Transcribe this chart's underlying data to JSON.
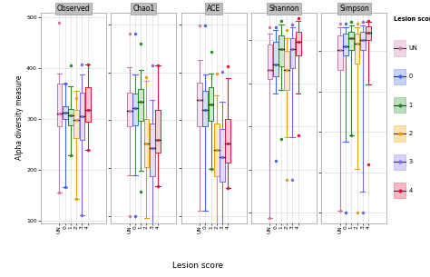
{
  "panels": [
    "Observed",
    "Chao1",
    "ACE",
    "Shannon",
    "Simpson"
  ],
  "groups": [
    "UN",
    "0",
    "1",
    "2",
    "3",
    "4"
  ],
  "colors": {
    "UN": "#CC79A7",
    "0": "#4169E1",
    "1": "#228B22",
    "2": "#E69F00",
    "3": "#7B68EE",
    "4": "#DC143C"
  },
  "observed": {
    "UN": {
      "whislo": 155,
      "q1": 285,
      "med": 310,
      "q3": 370,
      "whishi": 390,
      "fliers_low": [
        155
      ],
      "fliers_high": [
        490
      ]
    },
    "0": {
      "whislo": 165,
      "q1": 300,
      "med": 312,
      "q3": 325,
      "whishi": 370,
      "fliers_low": [
        165
      ],
      "fliers_high": [
        370
      ]
    },
    "1": {
      "whislo": 228,
      "q1": 288,
      "med": 308,
      "q3": 320,
      "whishi": 365,
      "fliers_low": [
        228
      ],
      "fliers_high": [
        405
      ]
    },
    "2": {
      "whislo": 142,
      "q1": 262,
      "med": 298,
      "q3": 318,
      "whishi": 355,
      "fliers_low": [
        142
      ],
      "fliers_high": [
        342
      ]
    },
    "3": {
      "whislo": 110,
      "q1": 258,
      "med": 305,
      "q3": 352,
      "whishi": 388,
      "fliers_low": [
        110
      ],
      "fliers_high": [
        408
      ]
    },
    "4": {
      "whislo": 240,
      "q1": 295,
      "med": 318,
      "q3": 362,
      "whishi": 408,
      "fliers_low": [
        240
      ],
      "fliers_high": [
        408
      ]
    }
  },
  "chao1": {
    "UN": {
      "whislo": 285,
      "q1": 388,
      "med": 420,
      "q3": 458,
      "whishi": 510,
      "fliers_low": [
        200
      ],
      "fliers_high": [
        580
      ]
    },
    "0": {
      "whislo": 285,
      "q1": 390,
      "med": 425,
      "q3": 455,
      "whishi": 495,
      "fliers_low": [
        200
      ],
      "fliers_high": [
        580
      ]
    },
    "1": {
      "whislo": 295,
      "q1": 398,
      "med": 438,
      "q3": 465,
      "whishi": 505,
      "fliers_low": [
        250
      ],
      "fliers_high": [
        560
      ]
    },
    "2": {
      "whislo": 195,
      "q1": 302,
      "med": 352,
      "q3": 402,
      "whishi": 482,
      "fliers_low": [
        130
      ],
      "fliers_high": [
        490
      ]
    },
    "3": {
      "whislo": 130,
      "q1": 282,
      "med": 342,
      "q3": 392,
      "whishi": 442,
      "fliers_low": [
        130
      ],
      "fliers_high": [
        515
      ]
    },
    "4": {
      "whislo": 262,
      "q1": 332,
      "med": 358,
      "q3": 422,
      "whishi": 515,
      "fliers_low": [
        262
      ],
      "fliers_high": [
        515
      ]
    }
  },
  "ace": {
    "UN": {
      "whislo": 210,
      "q1": 388,
      "med": 442,
      "q3": 478,
      "whishi": 525,
      "fliers_low": [
        120
      ],
      "fliers_high": [
        598
      ]
    },
    "0": {
      "whislo": 210,
      "q1": 388,
      "med": 422,
      "q3": 462,
      "whishi": 495,
      "fliers_low": [
        120
      ],
      "fliers_high": [
        598
      ]
    },
    "1": {
      "whislo": 298,
      "q1": 398,
      "med": 432,
      "q3": 468,
      "whishi": 498,
      "fliers_low": [
        298
      ],
      "fliers_high": [
        542
      ]
    },
    "2": {
      "whislo": 162,
      "q1": 282,
      "med": 338,
      "q3": 392,
      "whishi": 452,
      "fliers_low": [
        162
      ],
      "fliers_high": [
        498
      ]
    },
    "3": {
      "whislo": 120,
      "q1": 272,
      "med": 322,
      "q3": 382,
      "whishi": 438,
      "fliers_low": [
        120
      ],
      "fliers_high": [
        502
      ]
    },
    "4": {
      "whislo": 258,
      "q1": 312,
      "med": 352,
      "q3": 402,
      "whishi": 488,
      "fliers_low": [
        258
      ],
      "fliers_high": [
        512
      ]
    }
  },
  "shannon": {
    "UN": {
      "whislo": 1.44,
      "q1": 3.05,
      "med": 3.15,
      "q3": 3.45,
      "whishi": 3.58,
      "fliers_low": [
        1.44
      ],
      "fliers_high": [
        3.65
      ]
    },
    "0": {
      "whislo": 2.88,
      "q1": 3.08,
      "med": 3.22,
      "q3": 3.48,
      "whishi": 3.62,
      "fliers_low": [
        2.1
      ],
      "fliers_high": [
        3.65
      ]
    },
    "1": {
      "whislo": 2.92,
      "q1": 3.2,
      "med": 3.4,
      "q3": 3.55,
      "whishi": 3.68,
      "fliers_low": [
        2.35
      ],
      "fliers_high": [
        3.72
      ]
    },
    "2": {
      "whislo": 2.38,
      "q1": 2.92,
      "med": 3.15,
      "q3": 3.38,
      "whishi": 3.52,
      "fliers_low": [
        1.88
      ],
      "fliers_high": [
        3.62
      ]
    },
    "3": {
      "whislo": 2.38,
      "q1": 3.18,
      "med": 3.4,
      "q3": 3.52,
      "whishi": 3.65,
      "fliers_low": [
        1.88
      ],
      "fliers_high": [
        3.68
      ]
    },
    "4": {
      "whislo": 2.88,
      "q1": 3.32,
      "med": 3.48,
      "q3": 3.6,
      "whishi": 3.72,
      "fliers_low": [
        2.4
      ],
      "fliers_high": [
        3.75
      ]
    }
  },
  "simpson": {
    "UN": {
      "whislo": 0.505,
      "q1": 0.852,
      "med": 0.902,
      "q3": 0.938,
      "whishi": 0.958,
      "fliers_low": [
        0.505
      ],
      "fliers_high": [
        0.968
      ]
    },
    "0": {
      "whislo": 0.675,
      "q1": 0.888,
      "med": 0.912,
      "q3": 0.942,
      "whishi": 0.958,
      "fliers_low": [
        0.5
      ],
      "fliers_high": [
        0.968
      ]
    },
    "1": {
      "whislo": 0.692,
      "q1": 0.902,
      "med": 0.932,
      "q3": 0.948,
      "whishi": 0.962,
      "fliers_low": [
        0.692
      ],
      "fliers_high": [
        0.972
      ]
    },
    "2": {
      "whislo": 0.608,
      "q1": 0.868,
      "med": 0.918,
      "q3": 0.942,
      "whishi": 0.958,
      "fliers_low": [
        0.5
      ],
      "fliers_high": [
        0.968
      ]
    },
    "3": {
      "whislo": 0.552,
      "q1": 0.902,
      "med": 0.928,
      "q3": 0.948,
      "whishi": 0.962,
      "fliers_low": [
        0.5
      ],
      "fliers_high": [
        0.972
      ]
    },
    "4": {
      "whislo": 0.818,
      "q1": 0.928,
      "med": 0.946,
      "q3": 0.96,
      "whishi": 0.972,
      "fliers_low": [
        0.62
      ],
      "fliers_high": [
        0.975
      ]
    }
  },
  "ylims": {
    "Observed": [
      95,
      510
    ],
    "Chao1": [
      185,
      625
    ],
    "ACE": [
      185,
      625
    ],
    "Shannon": [
      1.38,
      3.82
    ],
    "Simpson": [
      0.475,
      0.995
    ]
  },
  "yticks": {
    "Observed": [
      100,
      200,
      300,
      400,
      500
    ],
    "Chao1": [
      200,
      300,
      400,
      500,
      600
    ],
    "ACE": [
      200,
      300,
      400,
      500,
      600
    ],
    "Shannon": [
      1.5,
      2.0,
      2.5,
      3.0,
      3.5
    ],
    "Simpson": [
      0.5,
      0.6,
      0.7,
      0.8,
      0.9
    ]
  },
  "ylabel": "Alpha diversity measure",
  "xlabel": "Lesion score",
  "title_bg": "#BEBEBE",
  "box_bg": "#FFFFFF",
  "grid_color": "#DCDCDC",
  "panel_edge_color": "#AAAAAA"
}
